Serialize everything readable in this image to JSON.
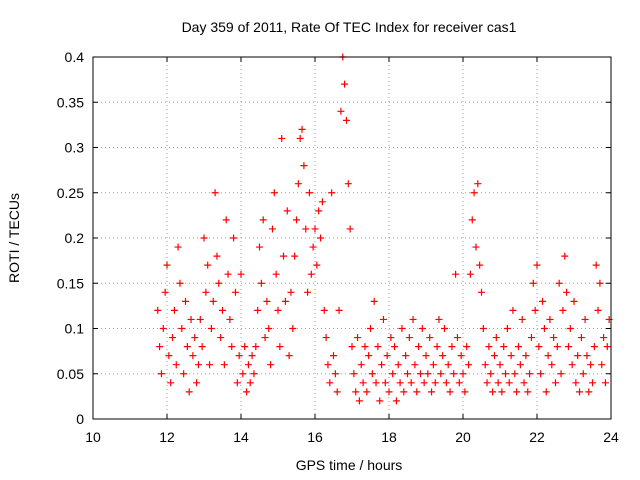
{
  "chart_data": {
    "type": "scatter",
    "title": "Day 359 of 2011, Rate Of TEC Index for receiver cas1",
    "xlabel": "GPS time / hours",
    "ylabel": "ROTI / TECUs",
    "xlim": [
      10,
      24
    ],
    "ylim": [
      0,
      0.4
    ],
    "x_ticks": [
      "10",
      "12",
      "14",
      "16",
      "18",
      "20",
      "22",
      "24"
    ],
    "y_ticks": [
      "0",
      "0.05",
      "0.1",
      "0.15",
      "0.2",
      "0.25",
      "0.3",
      "0.35",
      "0.4"
    ],
    "grid": true,
    "marker": "+",
    "color": "#ff0000",
    "points": [
      [
        11.75,
        0.12
      ],
      [
        11.8,
        0.08
      ],
      [
        11.85,
        0.05
      ],
      [
        11.9,
        0.1
      ],
      [
        11.95,
        0.14
      ],
      [
        12.0,
        0.17
      ],
      [
        12.05,
        0.07
      ],
      [
        12.1,
        0.04
      ],
      [
        12.15,
        0.09
      ],
      [
        12.2,
        0.12
      ],
      [
        12.25,
        0.06
      ],
      [
        12.3,
        0.19
      ],
      [
        12.35,
        0.15
      ],
      [
        12.4,
        0.1
      ],
      [
        12.45,
        0.05
      ],
      [
        12.5,
        0.13
      ],
      [
        12.55,
        0.08
      ],
      [
        12.6,
        0.03
      ],
      [
        12.65,
        0.11
      ],
      [
        12.7,
        0.07
      ],
      [
        12.75,
        0.09
      ],
      [
        12.8,
        0.04
      ],
      [
        12.85,
        0.06
      ],
      [
        12.9,
        0.11
      ],
      [
        12.95,
        0.08
      ],
      [
        13.0,
        0.2
      ],
      [
        13.05,
        0.14
      ],
      [
        13.1,
        0.17
      ],
      [
        13.15,
        0.06
      ],
      [
        13.2,
        0.1
      ],
      [
        13.25,
        0.13
      ],
      [
        13.3,
        0.25
      ],
      [
        13.35,
        0.18
      ],
      [
        13.4,
        0.15
      ],
      [
        13.45,
        0.09
      ],
      [
        13.5,
        0.12
      ],
      [
        13.55,
        0.06
      ],
      [
        13.6,
        0.22
      ],
      [
        13.65,
        0.16
      ],
      [
        13.7,
        0.11
      ],
      [
        13.75,
        0.08
      ],
      [
        13.8,
        0.2
      ],
      [
        13.85,
        0.14
      ],
      [
        13.9,
        0.04
      ],
      [
        13.95,
        0.07
      ],
      [
        14.0,
        0.16
      ],
      [
        14.05,
        0.05
      ],
      [
        14.1,
        0.08
      ],
      [
        14.15,
        0.03
      ],
      [
        14.2,
        0.06
      ],
      [
        14.25,
        0.04
      ],
      [
        14.3,
        0.07
      ],
      [
        14.35,
        0.05
      ],
      [
        14.4,
        0.08
      ],
      [
        14.45,
        0.12
      ],
      [
        14.5,
        0.19
      ],
      [
        14.55,
        0.15
      ],
      [
        14.6,
        0.22
      ],
      [
        14.65,
        0.09
      ],
      [
        14.7,
        0.13
      ],
      [
        14.75,
        0.1
      ],
      [
        14.8,
        0.06
      ],
      [
        14.85,
        0.21
      ],
      [
        14.9,
        0.25
      ],
      [
        14.95,
        0.16
      ],
      [
        15.0,
        0.12
      ],
      [
        15.05,
        0.08
      ],
      [
        15.1,
        0.31
      ],
      [
        15.15,
        0.18
      ],
      [
        15.2,
        0.13
      ],
      [
        15.25,
        0.23
      ],
      [
        15.3,
        0.07
      ],
      [
        15.35,
        0.14
      ],
      [
        15.4,
        0.1
      ],
      [
        15.45,
        0.18
      ],
      [
        15.5,
        0.22
      ],
      [
        15.55,
        0.26
      ],
      [
        15.6,
        0.31
      ],
      [
        15.65,
        0.32
      ],
      [
        15.7,
        0.28
      ],
      [
        15.75,
        0.21
      ],
      [
        15.8,
        0.14
      ],
      [
        15.85,
        0.25
      ],
      [
        15.9,
        0.16
      ],
      [
        15.95,
        0.19
      ],
      [
        16.0,
        0.21
      ],
      [
        16.05,
        0.17
      ],
      [
        16.1,
        0.23
      ],
      [
        16.15,
        0.2
      ],
      [
        16.2,
        0.24
      ],
      [
        16.25,
        0.12
      ],
      [
        16.3,
        0.09
      ],
      [
        16.35,
        0.06
      ],
      [
        16.4,
        0.04
      ],
      [
        16.45,
        0.25
      ],
      [
        16.5,
        0.07
      ],
      [
        16.55,
        0.05
      ],
      [
        16.6,
        0.03
      ],
      [
        16.65,
        0.12
      ],
      [
        16.7,
        0.34
      ],
      [
        16.75,
        0.4
      ],
      [
        16.8,
        0.37
      ],
      [
        16.85,
        0.33
      ],
      [
        16.9,
        0.26
      ],
      [
        16.95,
        0.21
      ],
      [
        17.0,
        0.08
      ],
      [
        17.05,
        0.05
      ],
      [
        17.1,
        0.03
      ],
      [
        17.15,
        0.09
      ],
      [
        17.2,
        0.02
      ],
      [
        17.25,
        0.06
      ],
      [
        17.3,
        0.04
      ],
      [
        17.35,
        0.08
      ],
      [
        17.4,
        0.03
      ],
      [
        17.45,
        0.07
      ],
      [
        17.5,
        0.1
      ],
      [
        17.55,
        0.05
      ],
      [
        17.6,
        0.13
      ],
      [
        17.65,
        0.04
      ],
      [
        17.7,
        0.08
      ],
      [
        17.75,
        0.02
      ],
      [
        17.8,
        0.06
      ],
      [
        17.85,
        0.11
      ],
      [
        17.9,
        0.04
      ],
      [
        17.95,
        0.07
      ],
      [
        18.0,
        0.03
      ],
      [
        18.05,
        0.09
      ],
      [
        18.1,
        0.05
      ],
      [
        18.15,
        0.08
      ],
      [
        18.2,
        0.02
      ],
      [
        18.25,
        0.06
      ],
      [
        18.3,
        0.04
      ],
      [
        18.35,
        0.1
      ],
      [
        18.4,
        0.03
      ],
      [
        18.45,
        0.07
      ],
      [
        18.5,
        0.05
      ],
      [
        18.55,
        0.09
      ],
      [
        18.6,
        0.04
      ],
      [
        18.65,
        0.11
      ],
      [
        18.7,
        0.06
      ],
      [
        18.75,
        0.03
      ],
      [
        18.8,
        0.08
      ],
      [
        18.85,
        0.05
      ],
      [
        18.9,
        0.1
      ],
      [
        18.95,
        0.04
      ],
      [
        19.0,
        0.07
      ],
      [
        19.05,
        0.05
      ],
      [
        19.1,
        0.09
      ],
      [
        19.15,
        0.03
      ],
      [
        19.2,
        0.06
      ],
      [
        19.25,
        0.04
      ],
      [
        19.3,
        0.08
      ],
      [
        19.35,
        0.11
      ],
      [
        19.4,
        0.05
      ],
      [
        19.45,
        0.07
      ],
      [
        19.5,
        0.1
      ],
      [
        19.55,
        0.04
      ],
      [
        19.6,
        0.06
      ],
      [
        19.65,
        0.03
      ],
      [
        19.7,
        0.08
      ],
      [
        19.75,
        0.05
      ],
      [
        19.8,
        0.16
      ],
      [
        19.85,
        0.09
      ],
      [
        19.9,
        0.04
      ],
      [
        19.95,
        0.07
      ],
      [
        20.0,
        0.05
      ],
      [
        20.05,
        0.03
      ],
      [
        20.1,
        0.08
      ],
      [
        20.15,
        0.06
      ],
      [
        20.2,
        0.16
      ],
      [
        20.25,
        0.22
      ],
      [
        20.3,
        0.25
      ],
      [
        20.35,
        0.19
      ],
      [
        20.4,
        0.26
      ],
      [
        20.45,
        0.17
      ],
      [
        20.5,
        0.14
      ],
      [
        20.55,
        0.1
      ],
      [
        20.6,
        0.06
      ],
      [
        20.65,
        0.04
      ],
      [
        20.7,
        0.08
      ],
      [
        20.75,
        0.05
      ],
      [
        20.8,
        0.03
      ],
      [
        20.85,
        0.07
      ],
      [
        20.9,
        0.09
      ],
      [
        20.95,
        0.04
      ],
      [
        21.0,
        0.06
      ],
      [
        21.05,
        0.03
      ],
      [
        21.1,
        0.08
      ],
      [
        21.15,
        0.05
      ],
      [
        21.2,
        0.1
      ],
      [
        21.25,
        0.04
      ],
      [
        21.3,
        0.07
      ],
      [
        21.35,
        0.12
      ],
      [
        21.4,
        0.05
      ],
      [
        21.45,
        0.03
      ],
      [
        21.5,
        0.08
      ],
      [
        21.55,
        0.06
      ],
      [
        21.6,
        0.11
      ],
      [
        21.65,
        0.04
      ],
      [
        21.7,
        0.07
      ],
      [
        21.75,
        0.03
      ],
      [
        21.8,
        0.05
      ],
      [
        21.85,
        0.09
      ],
      [
        21.9,
        0.15
      ],
      [
        21.95,
        0.12
      ],
      [
        22.0,
        0.17
      ],
      [
        22.05,
        0.08
      ],
      [
        22.1,
        0.05
      ],
      [
        22.15,
        0.13
      ],
      [
        22.2,
        0.1
      ],
      [
        22.25,
        0.03
      ],
      [
        22.3,
        0.07
      ],
      [
        22.35,
        0.11
      ],
      [
        22.4,
        0.06
      ],
      [
        22.45,
        0.09
      ],
      [
        22.5,
        0.04
      ],
      [
        22.55,
        0.08
      ],
      [
        22.6,
        0.15
      ],
      [
        22.65,
        0.05
      ],
      [
        22.7,
        0.12
      ],
      [
        22.75,
        0.18
      ],
      [
        22.8,
        0.14
      ],
      [
        22.85,
        0.08
      ],
      [
        22.9,
        0.1
      ],
      [
        22.95,
        0.06
      ],
      [
        23.0,
        0.13
      ],
      [
        23.05,
        0.04
      ],
      [
        23.1,
        0.07
      ],
      [
        23.15,
        0.03
      ],
      [
        23.2,
        0.09
      ],
      [
        23.25,
        0.05
      ],
      [
        23.3,
        0.11
      ],
      [
        23.35,
        0.07
      ],
      [
        23.4,
        0.03
      ],
      [
        23.45,
        0.06
      ],
      [
        23.5,
        0.04
      ],
      [
        23.55,
        0.08
      ],
      [
        23.6,
        0.17
      ],
      [
        23.65,
        0.12
      ],
      [
        23.7,
        0.15
      ],
      [
        23.75,
        0.06
      ],
      [
        23.8,
        0.09
      ],
      [
        23.85,
        0.04
      ],
      [
        23.9,
        0.08
      ],
      [
        23.95,
        0.11
      ]
    ]
  }
}
